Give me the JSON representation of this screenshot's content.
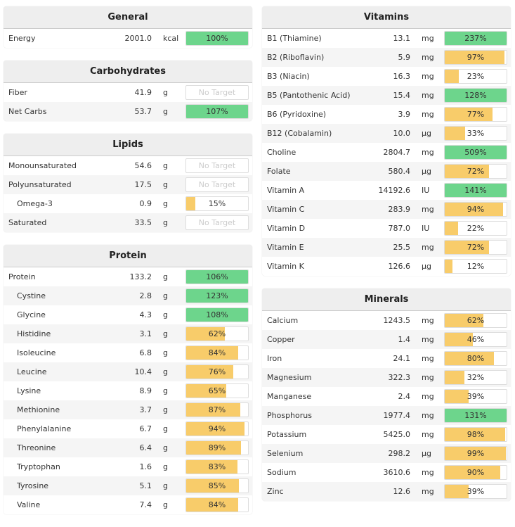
{
  "colors": {
    "met": "#6dd58c",
    "partial": "#f8cc6a"
  },
  "no_target_label": "No Target",
  "left": [
    {
      "title": "General",
      "rows": [
        {
          "name": "Energy",
          "value": "2001.0",
          "unit": "kcal",
          "pct": 100
        }
      ]
    },
    {
      "title": "Carbohydrates",
      "rows": [
        {
          "name": "Fiber",
          "value": "41.9",
          "unit": "g",
          "pct": null
        },
        {
          "name": "Net Carbs",
          "value": "53.7",
          "unit": "g",
          "pct": 107
        }
      ]
    },
    {
      "title": "Lipids",
      "rows": [
        {
          "name": "Monounsaturated",
          "value": "54.6",
          "unit": "g",
          "pct": null
        },
        {
          "name": "Polyunsaturated",
          "value": "17.5",
          "unit": "g",
          "pct": null
        },
        {
          "name": "Omega-3",
          "value": "0.9",
          "unit": "g",
          "pct": 15,
          "sub": true
        },
        {
          "name": "Saturated",
          "value": "33.5",
          "unit": "g",
          "pct": null
        }
      ]
    },
    {
      "title": "Protein",
      "rows": [
        {
          "name": "Protein",
          "value": "133.2",
          "unit": "g",
          "pct": 106
        },
        {
          "name": "Cystine",
          "value": "2.8",
          "unit": "g",
          "pct": 123,
          "sub": true
        },
        {
          "name": "Glycine",
          "value": "4.3",
          "unit": "g",
          "pct": 108,
          "sub": true
        },
        {
          "name": "Histidine",
          "value": "3.1",
          "unit": "g",
          "pct": 62,
          "sub": true
        },
        {
          "name": "Isoleucine",
          "value": "6.8",
          "unit": "g",
          "pct": 84,
          "sub": true
        },
        {
          "name": "Leucine",
          "value": "10.4",
          "unit": "g",
          "pct": 76,
          "sub": true
        },
        {
          "name": "Lysine",
          "value": "8.9",
          "unit": "g",
          "pct": 65,
          "sub": true
        },
        {
          "name": "Methionine",
          "value": "3.7",
          "unit": "g",
          "pct": 87,
          "sub": true
        },
        {
          "name": "Phenylalanine",
          "value": "6.7",
          "unit": "g",
          "pct": 94,
          "sub": true
        },
        {
          "name": "Threonine",
          "value": "6.4",
          "unit": "g",
          "pct": 89,
          "sub": true
        },
        {
          "name": "Tryptophan",
          "value": "1.6",
          "unit": "g",
          "pct": 83,
          "sub": true
        },
        {
          "name": "Tyrosine",
          "value": "5.1",
          "unit": "g",
          "pct": 85,
          "sub": true
        },
        {
          "name": "Valine",
          "value": "7.4",
          "unit": "g",
          "pct": 84,
          "sub": true
        }
      ]
    }
  ],
  "right": [
    {
      "title": "Vitamins",
      "rows": [
        {
          "name": "B1 (Thiamine)",
          "value": "13.1",
          "unit": "mg",
          "pct": 237
        },
        {
          "name": "B2 (Riboflavin)",
          "value": "5.9",
          "unit": "mg",
          "pct": 97
        },
        {
          "name": "B3 (Niacin)",
          "value": "16.3",
          "unit": "mg",
          "pct": 23
        },
        {
          "name": "B5 (Pantothenic Acid)",
          "value": "15.4",
          "unit": "mg",
          "pct": 128
        },
        {
          "name": "B6 (Pyridoxine)",
          "value": "3.9",
          "unit": "mg",
          "pct": 77
        },
        {
          "name": "B12 (Cobalamin)",
          "value": "10.0",
          "unit": "µg",
          "pct": 33
        },
        {
          "name": "Choline",
          "value": "2804.7",
          "unit": "mg",
          "pct": 509
        },
        {
          "name": "Folate",
          "value": "580.4",
          "unit": "µg",
          "pct": 72
        },
        {
          "name": "Vitamin A",
          "value": "14192.6",
          "unit": "IU",
          "pct": 141
        },
        {
          "name": "Vitamin C",
          "value": "283.9",
          "unit": "mg",
          "pct": 94
        },
        {
          "name": "Vitamin D",
          "value": "787.0",
          "unit": "IU",
          "pct": 22
        },
        {
          "name": "Vitamin E",
          "value": "25.5",
          "unit": "mg",
          "pct": 72
        },
        {
          "name": "Vitamin K",
          "value": "126.6",
          "unit": "µg",
          "pct": 12
        }
      ]
    },
    {
      "title": "Minerals",
      "rows": [
        {
          "name": "Calcium",
          "value": "1243.5",
          "unit": "mg",
          "pct": 62
        },
        {
          "name": "Copper",
          "value": "1.4",
          "unit": "mg",
          "pct": 46
        },
        {
          "name": "Iron",
          "value": "24.1",
          "unit": "mg",
          "pct": 80
        },
        {
          "name": "Magnesium",
          "value": "322.3",
          "unit": "mg",
          "pct": 32
        },
        {
          "name": "Manganese",
          "value": "2.4",
          "unit": "mg",
          "pct": 39
        },
        {
          "name": "Phosphorus",
          "value": "1977.4",
          "unit": "mg",
          "pct": 131
        },
        {
          "name": "Potassium",
          "value": "5425.0",
          "unit": "mg",
          "pct": 98
        },
        {
          "name": "Selenium",
          "value": "298.2",
          "unit": "µg",
          "pct": 99
        },
        {
          "name": "Sodium",
          "value": "3610.6",
          "unit": "mg",
          "pct": 90
        },
        {
          "name": "Zinc",
          "value": "12.6",
          "unit": "mg",
          "pct": 39
        }
      ]
    }
  ]
}
